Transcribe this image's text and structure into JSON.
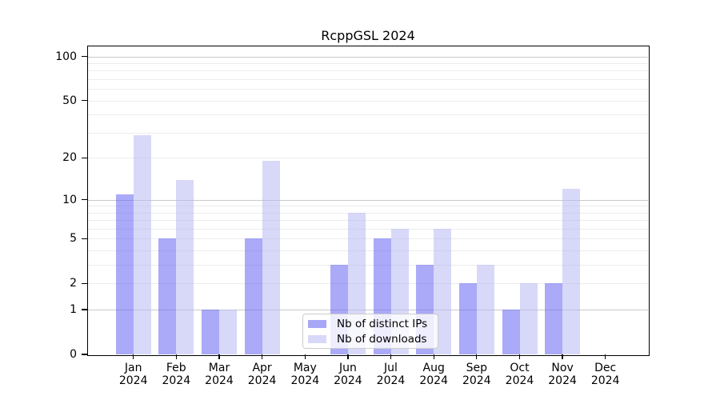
{
  "chart_data": {
    "type": "bar",
    "title": "RcppGSL 2024",
    "categories": [
      "Jan 2024",
      "Feb 2024",
      "Mar 2024",
      "Apr 2024",
      "May 2024",
      "Jun 2024",
      "Jul 2024",
      "Aug 2024",
      "Sep 2024",
      "Oct 2024",
      "Nov 2024",
      "Dec 2024"
    ],
    "series": [
      {
        "name": "Nb of distinct IPs",
        "color": "#a7a7f5",
        "fill": "rgba(100,100,242,0.55)",
        "values": [
          11,
          5,
          1,
          5,
          0,
          3,
          5,
          3,
          2,
          1,
          2,
          0
        ]
      },
      {
        "name": "Nb of downloads",
        "color": "#d8d8f8",
        "fill": "rgba(184,184,242,0.55)",
        "values": [
          29,
          14,
          1,
          19,
          0,
          8,
          6,
          6,
          3,
          2,
          12,
          0
        ]
      }
    ],
    "yscale": "log1p",
    "ylim": [
      0,
      117
    ],
    "ytick_values": [
      100,
      50,
      20,
      10,
      5,
      2,
      1,
      0
    ],
    "ytick_labels": [
      "100",
      "50",
      "20",
      "10",
      "5",
      "2",
      "1",
      "0"
    ],
    "grid": {
      "orientation": "horizontal",
      "major_values": [
        1,
        10,
        100
      ],
      "minor_values": [
        2,
        3,
        4,
        5,
        6,
        7,
        8,
        9,
        20,
        30,
        40,
        50,
        60,
        70,
        80,
        90
      ],
      "major_color": "#c9c9c9",
      "minor_color": "#ececec"
    },
    "legend": {
      "position": "inside-bottom-center"
    },
    "xlabel": "",
    "ylabel": ""
  },
  "colors": {
    "axis": "#000000",
    "text": "#000000",
    "background": "#ffffff"
  }
}
